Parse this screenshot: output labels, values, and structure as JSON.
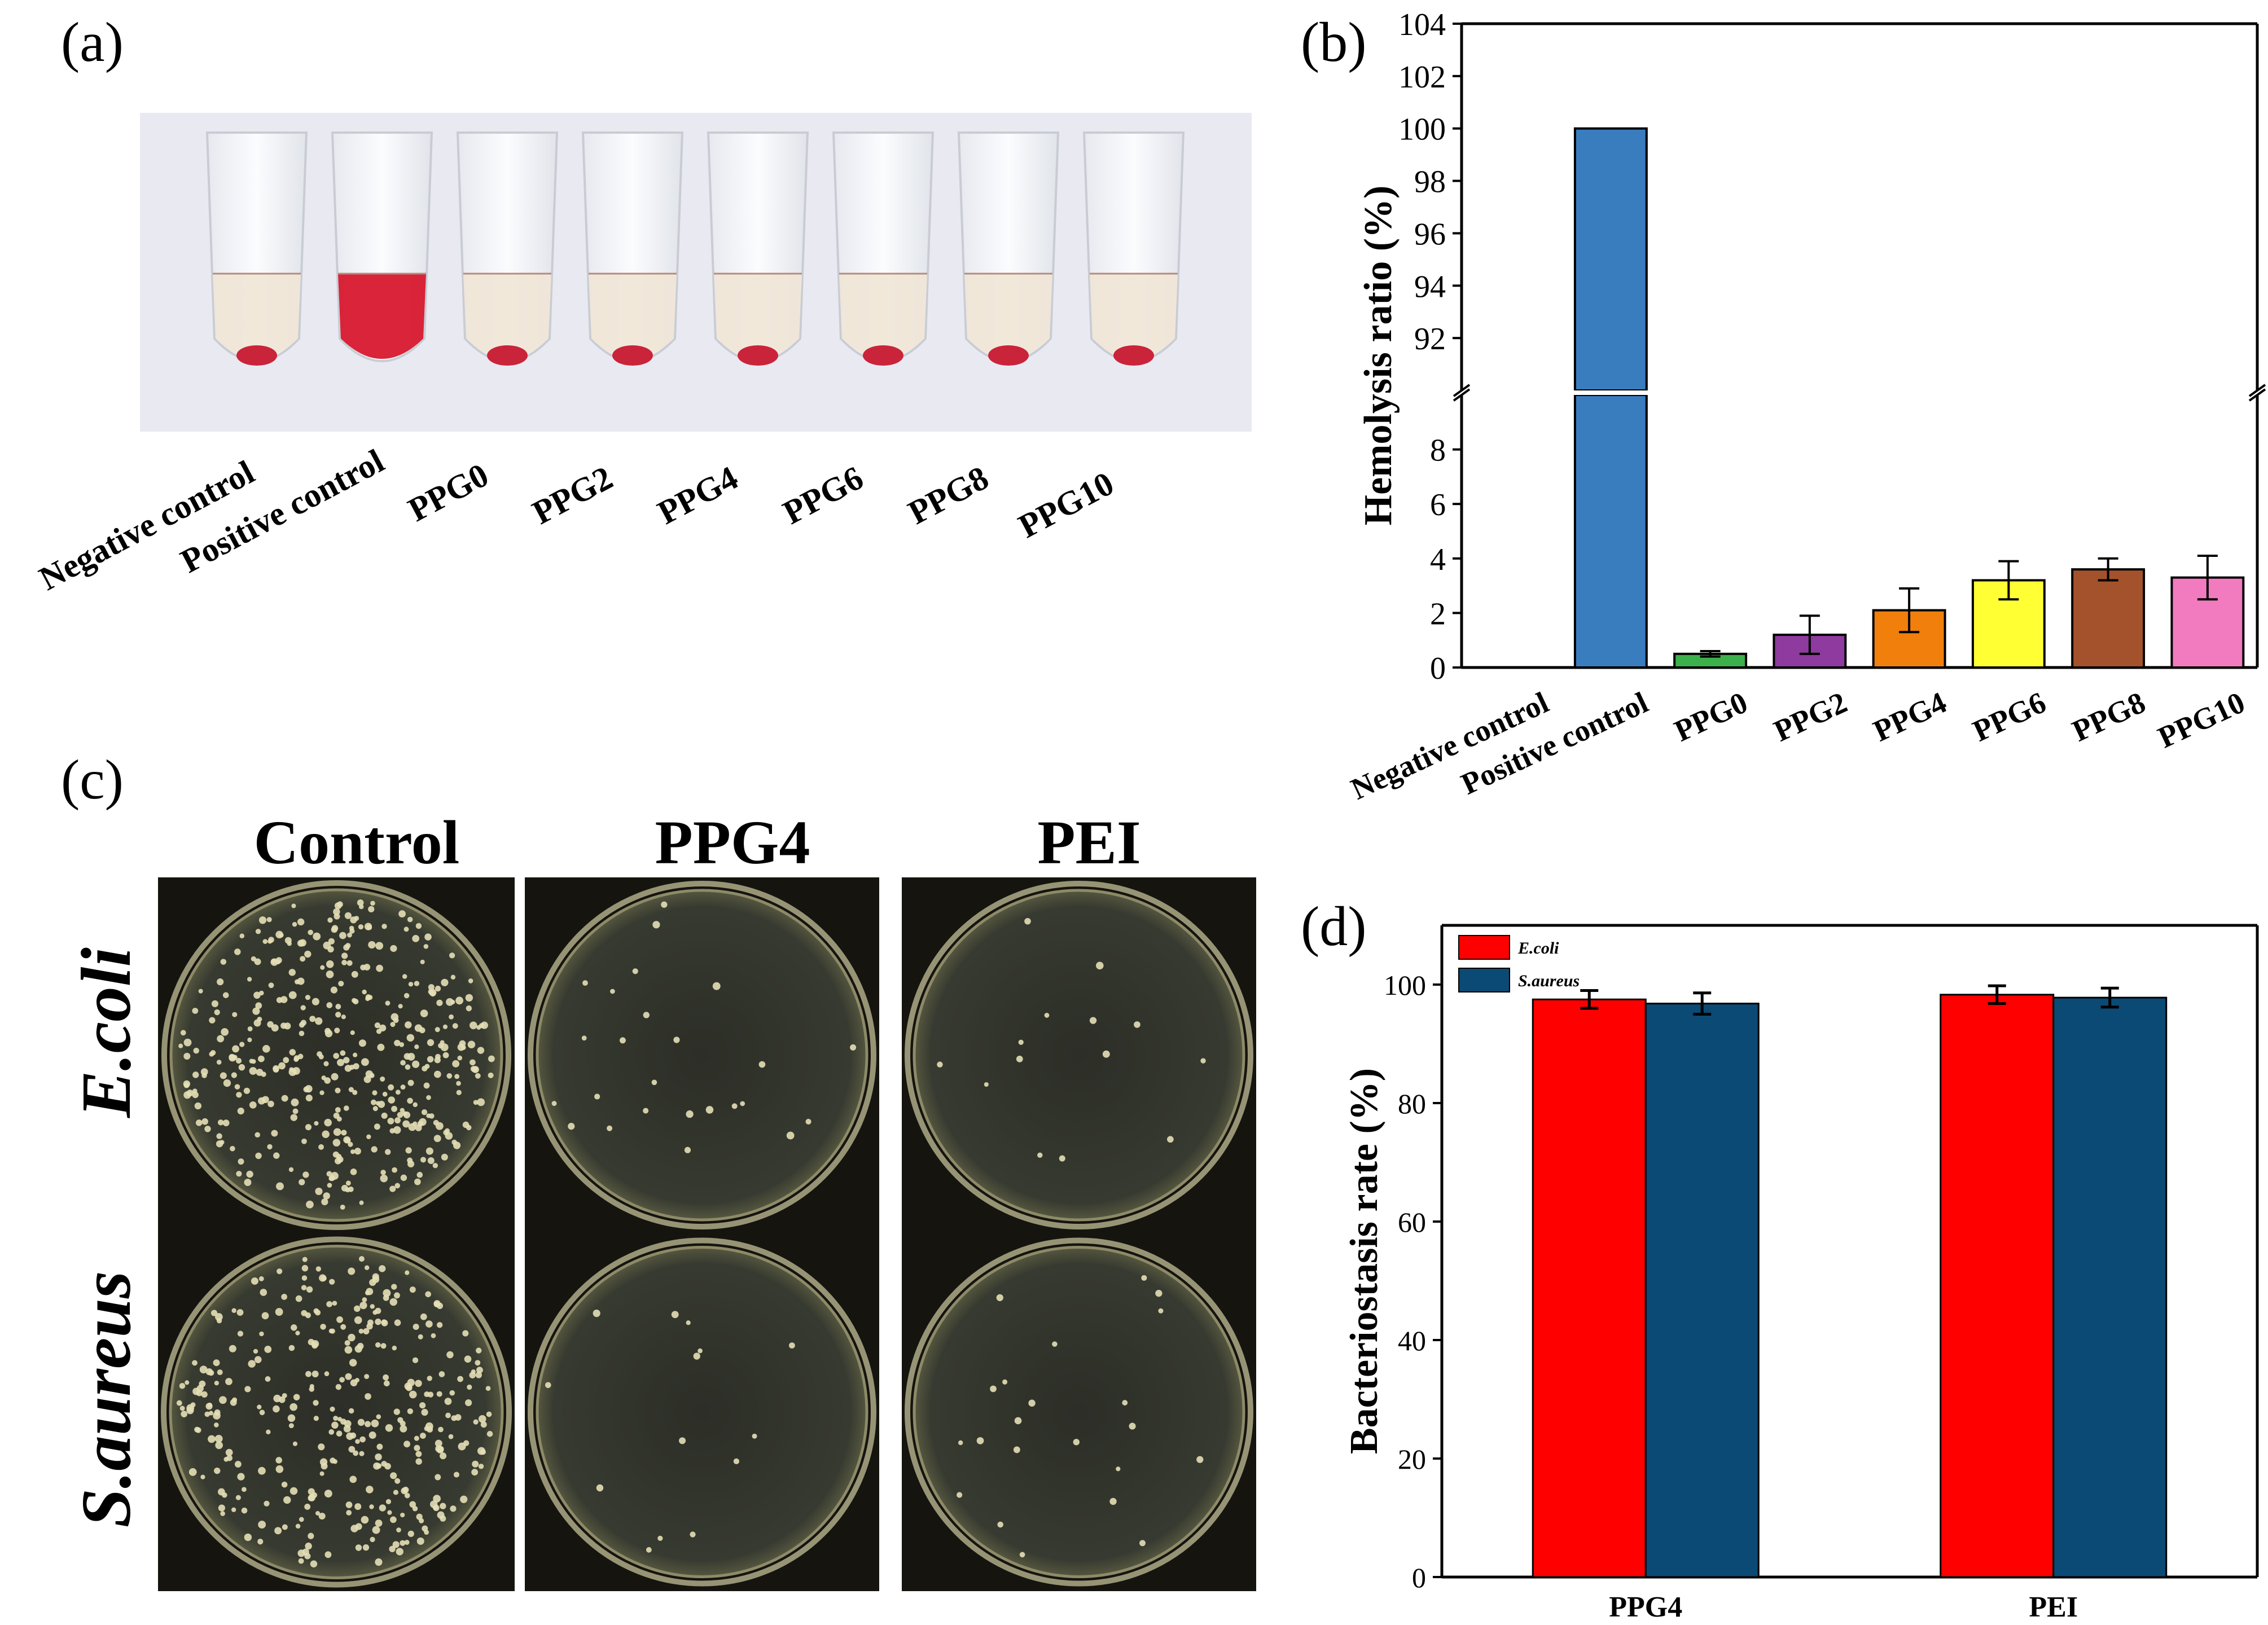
{
  "panels": {
    "a": {
      "label": "(a)",
      "photo_labels": [
        "Negative control",
        "Positive control",
        "PPG0",
        "PPG2",
        "PPG4",
        "PPG6",
        "PPG8",
        "PPG10"
      ]
    },
    "c": {
      "label": "(c)",
      "column_headers": [
        "Control",
        "PPG4",
        "PEI"
      ],
      "row_headers": [
        "E.coli",
        "S.aureus"
      ],
      "colonies": [
        [
          420,
          25,
          14
        ],
        [
          360,
          14,
          22
        ]
      ]
    }
  },
  "chart_data": [
    {
      "panel_label": "(b)",
      "type": "bar",
      "categories": [
        "Negative control",
        "Positive control",
        "PPG0",
        "PPG2",
        "PPG4",
        "PPG6",
        "PPG8",
        "PPG10"
      ],
      "values": [
        0,
        100,
        0.5,
        1.2,
        2.1,
        3.2,
        3.6,
        3.3
      ],
      "errors": [
        0,
        0,
        0.1,
        0.7,
        0.8,
        0.7,
        0.4,
        0.8
      ],
      "colors": [
        "#ffffff",
        "#3a7dbf",
        "#3cb04a",
        "#8e3a9e",
        "#f07f0c",
        "#ffff33",
        "#a3522b",
        "#f27bbf"
      ],
      "ylabel": "Hemolysis ratio (%)",
      "axis_break": [
        10,
        90
      ],
      "ylim_lower": [
        0,
        10
      ],
      "ylim_upper": [
        90,
        104
      ],
      "yticks_lower": [
        0,
        2,
        4,
        6,
        8
      ],
      "yticks_upper": [
        92,
        94,
        96,
        98,
        100,
        102,
        104
      ],
      "grid": false
    },
    {
      "panel_label": "(d)",
      "type": "bar",
      "categories": [
        "PPG4",
        "PEI"
      ],
      "series": [
        {
          "name": "E.coli",
          "values": [
            97.5,
            98.3
          ],
          "errors": [
            1.5,
            1.5
          ],
          "color": "#ff0000"
        },
        {
          "name": "S.aureus",
          "values": [
            96.8,
            97.8
          ],
          "errors": [
            1.8,
            1.6
          ],
          "color": "#0b4a75"
        }
      ],
      "ylabel": "Bacteriostasis rate (%)",
      "ylim": [
        0,
        110
      ],
      "yticks": [
        0,
        20,
        40,
        60,
        80,
        100
      ],
      "legend_position": "top-left",
      "grid": false
    }
  ]
}
